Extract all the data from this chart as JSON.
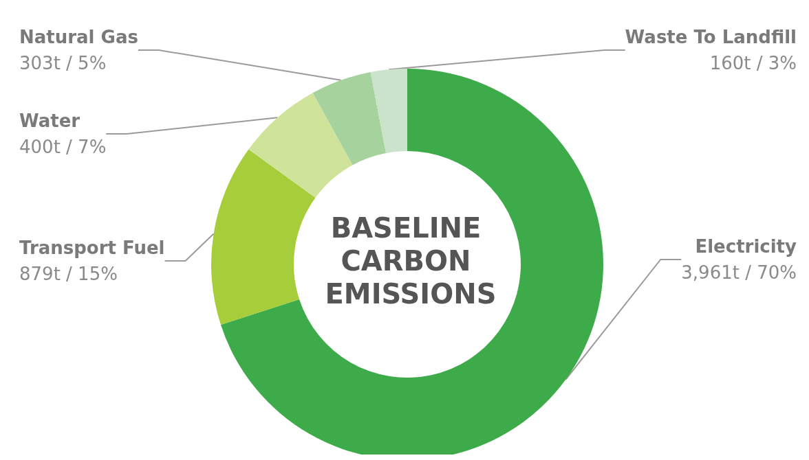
{
  "chart_data": {
    "type": "donut",
    "title": "BASELINE CARBON EMISSIONS",
    "categories": [
      "Electricity",
      "Transport Fuel",
      "Water",
      "Natural Gas",
      "Waste To Landfill"
    ],
    "values": [
      70,
      15,
      7,
      5,
      3
    ],
    "value_labels": [
      "3,961t / 70%",
      "879t / 15%",
      "400t / 7%",
      "303t / 5%",
      "160t / 3%"
    ],
    "colors": [
      "#3dab4a",
      "#a6cd3a",
      "#d0e39b",
      "#a5d29d",
      "#cce3cb"
    ],
    "legend": false
  }
}
